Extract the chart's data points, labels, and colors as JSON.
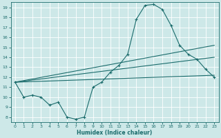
{
  "xlabel": "Humidex (Indice chaleur)",
  "bg_color": "#cde8e8",
  "grid_color": "#ffffff",
  "line_color": "#1a6b6b",
  "xlim": [
    -0.5,
    23.5
  ],
  "ylim": [
    7.5,
    19.5
  ],
  "xticks": [
    0,
    1,
    2,
    3,
    4,
    5,
    6,
    7,
    8,
    9,
    10,
    11,
    12,
    13,
    14,
    15,
    16,
    17,
    18,
    19,
    20,
    21,
    22,
    23
  ],
  "yticks": [
    8,
    9,
    10,
    11,
    12,
    13,
    14,
    15,
    16,
    17,
    18,
    19
  ],
  "series1": {
    "x": [
      0,
      1,
      2,
      3,
      4,
      5,
      6,
      7,
      8,
      9,
      10,
      11,
      12,
      13,
      14,
      15,
      16,
      17,
      18,
      19,
      20,
      21,
      22,
      23
    ],
    "y": [
      11.5,
      10.0,
      10.2,
      10.0,
      9.2,
      9.5,
      8.0,
      7.8,
      8.0,
      11.0,
      11.5,
      12.5,
      13.2,
      14.3,
      17.8,
      19.2,
      19.3,
      18.8,
      17.2,
      15.2,
      14.3,
      13.8,
      12.8,
      12.0
    ]
  },
  "series2": {
    "x": [
      0,
      23
    ],
    "y": [
      11.5,
      15.2
    ]
  },
  "series3": {
    "x": [
      0,
      23
    ],
    "y": [
      11.5,
      14.0
    ]
  },
  "series4": {
    "x": [
      0,
      23
    ],
    "y": [
      11.5,
      12.2
    ]
  }
}
